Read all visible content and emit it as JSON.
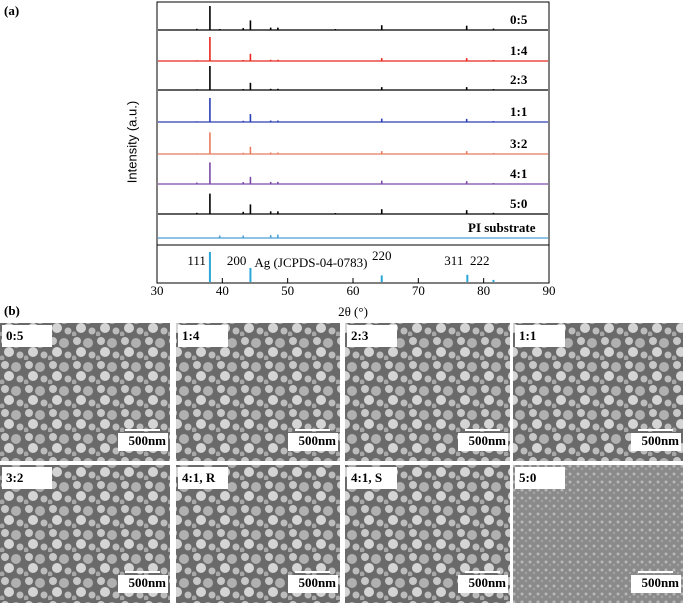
{
  "figure": {
    "panel_a": "(a)",
    "panel_b": "(b)"
  },
  "chart_data": {
    "type": "stick",
    "ylabel": "Intensity (a.u.)",
    "xlabel": "2θ (°)",
    "xlim": [
      30,
      90
    ],
    "xticks": [
      30,
      40,
      50,
      60,
      70,
      80,
      90
    ],
    "x": [
      36.1,
      38.1,
      39.6,
      43.2,
      44.3,
      47.4,
      48.5,
      57.3,
      64.4,
      77.4,
      81.5
    ],
    "series": [
      {
        "name": "0:5",
        "color": "#000000",
        "values": [
          5,
          100,
          4,
          8,
          40,
          10,
          10,
          4,
          20,
          18,
          6
        ]
      },
      {
        "name": "1:4",
        "color": "#e8281e",
        "values": [
          3,
          100,
          null,
          4,
          30,
          5,
          5,
          null,
          12,
          12,
          4
        ]
      },
      {
        "name": "2:3",
        "color": "#000000",
        "values": [
          3,
          100,
          null,
          4,
          30,
          5,
          5,
          null,
          12,
          12,
          4
        ]
      },
      {
        "name": "1:1",
        "color": "#2b3fb5",
        "values": [
          3,
          100,
          null,
          5,
          33,
          6,
          6,
          null,
          14,
          13,
          4
        ]
      },
      {
        "name": "3:2",
        "color": "#e87a5e",
        "values": [
          3,
          90,
          null,
          5,
          30,
          6,
          6,
          null,
          12,
          12,
          4
        ]
      },
      {
        "name": "4:1",
        "color": "#7a4aa6",
        "values": [
          6,
          90,
          null,
          8,
          30,
          9,
          9,
          null,
          14,
          12,
          4
        ]
      },
      {
        "name": "5:0",
        "color": "#000000",
        "values": [
          5,
          85,
          null,
          9,
          40,
          11,
          11,
          4,
          20,
          16,
          5
        ]
      },
      {
        "name": "PI substrate",
        "color": "#4a9fd8",
        "values": [
          null,
          null,
          10,
          10,
          null,
          12,
          14,
          null,
          null,
          null,
          null
        ]
      }
    ],
    "reference": {
      "name": "Ag (JCPDS-04-0783)",
      "color": "#2aa7d6",
      "x": [
        38.1,
        44.3,
        64.4,
        77.5,
        81.5
      ],
      "values": [
        100,
        47,
        22,
        24,
        7
      ],
      "labels": [
        "111",
        "200",
        "220",
        "311",
        "222"
      ]
    }
  },
  "images": [
    {
      "label": "0:5",
      "scale": "500nm"
    },
    {
      "label": "1:4",
      "scale": "500nm"
    },
    {
      "label": "2:3",
      "scale": "500nm"
    },
    {
      "label": "1:1",
      "scale": "500nm"
    },
    {
      "label": "3:2",
      "scale": "500nm"
    },
    {
      "label": "4:1, R",
      "scale": "500nm"
    },
    {
      "label": "4:1, S",
      "scale": "500nm"
    },
    {
      "label": "5:0",
      "scale": "500nm"
    }
  ]
}
